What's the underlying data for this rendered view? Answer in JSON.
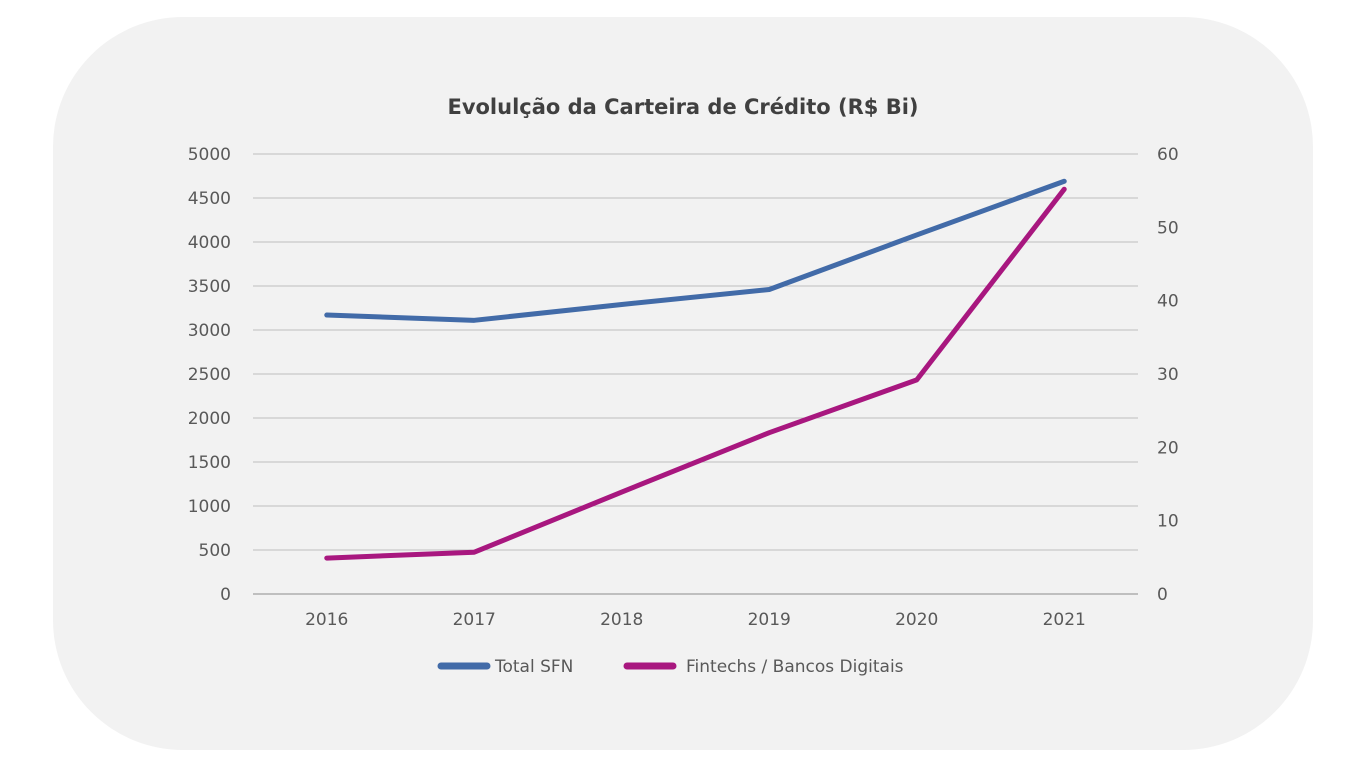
{
  "chart_data": {
    "type": "line",
    "title": "Evolulção da Carteira de Crédito (R$ Bi)",
    "categories": [
      "2016",
      "2017",
      "2018",
      "2019",
      "2020",
      "2021"
    ],
    "y_left": {
      "ticks": [
        "0",
        "500",
        "1000",
        "1500",
        "2000",
        "2500",
        "3000",
        "3500",
        "4000",
        "4500",
        "5000"
      ],
      "ylim": [
        0,
        5000
      ]
    },
    "y_right": {
      "ticks": [
        "0",
        "10",
        "20",
        "30",
        "40",
        "50",
        "60"
      ],
      "ylim": [
        0,
        60
      ]
    },
    "series": [
      {
        "name": "Total SFN",
        "axis": "left",
        "color": "#426ba8",
        "values": [
          3170,
          3110,
          3290,
          3460,
          4080,
          4690
        ]
      },
      {
        "name": "Fintechs / Bancos Digitais",
        "axis": "right",
        "color": "#a8177f",
        "values": [
          4.9,
          5.7,
          13.9,
          22.0,
          29.2,
          55.2
        ]
      }
    ],
    "grid": true,
    "legend": "bottom"
  }
}
